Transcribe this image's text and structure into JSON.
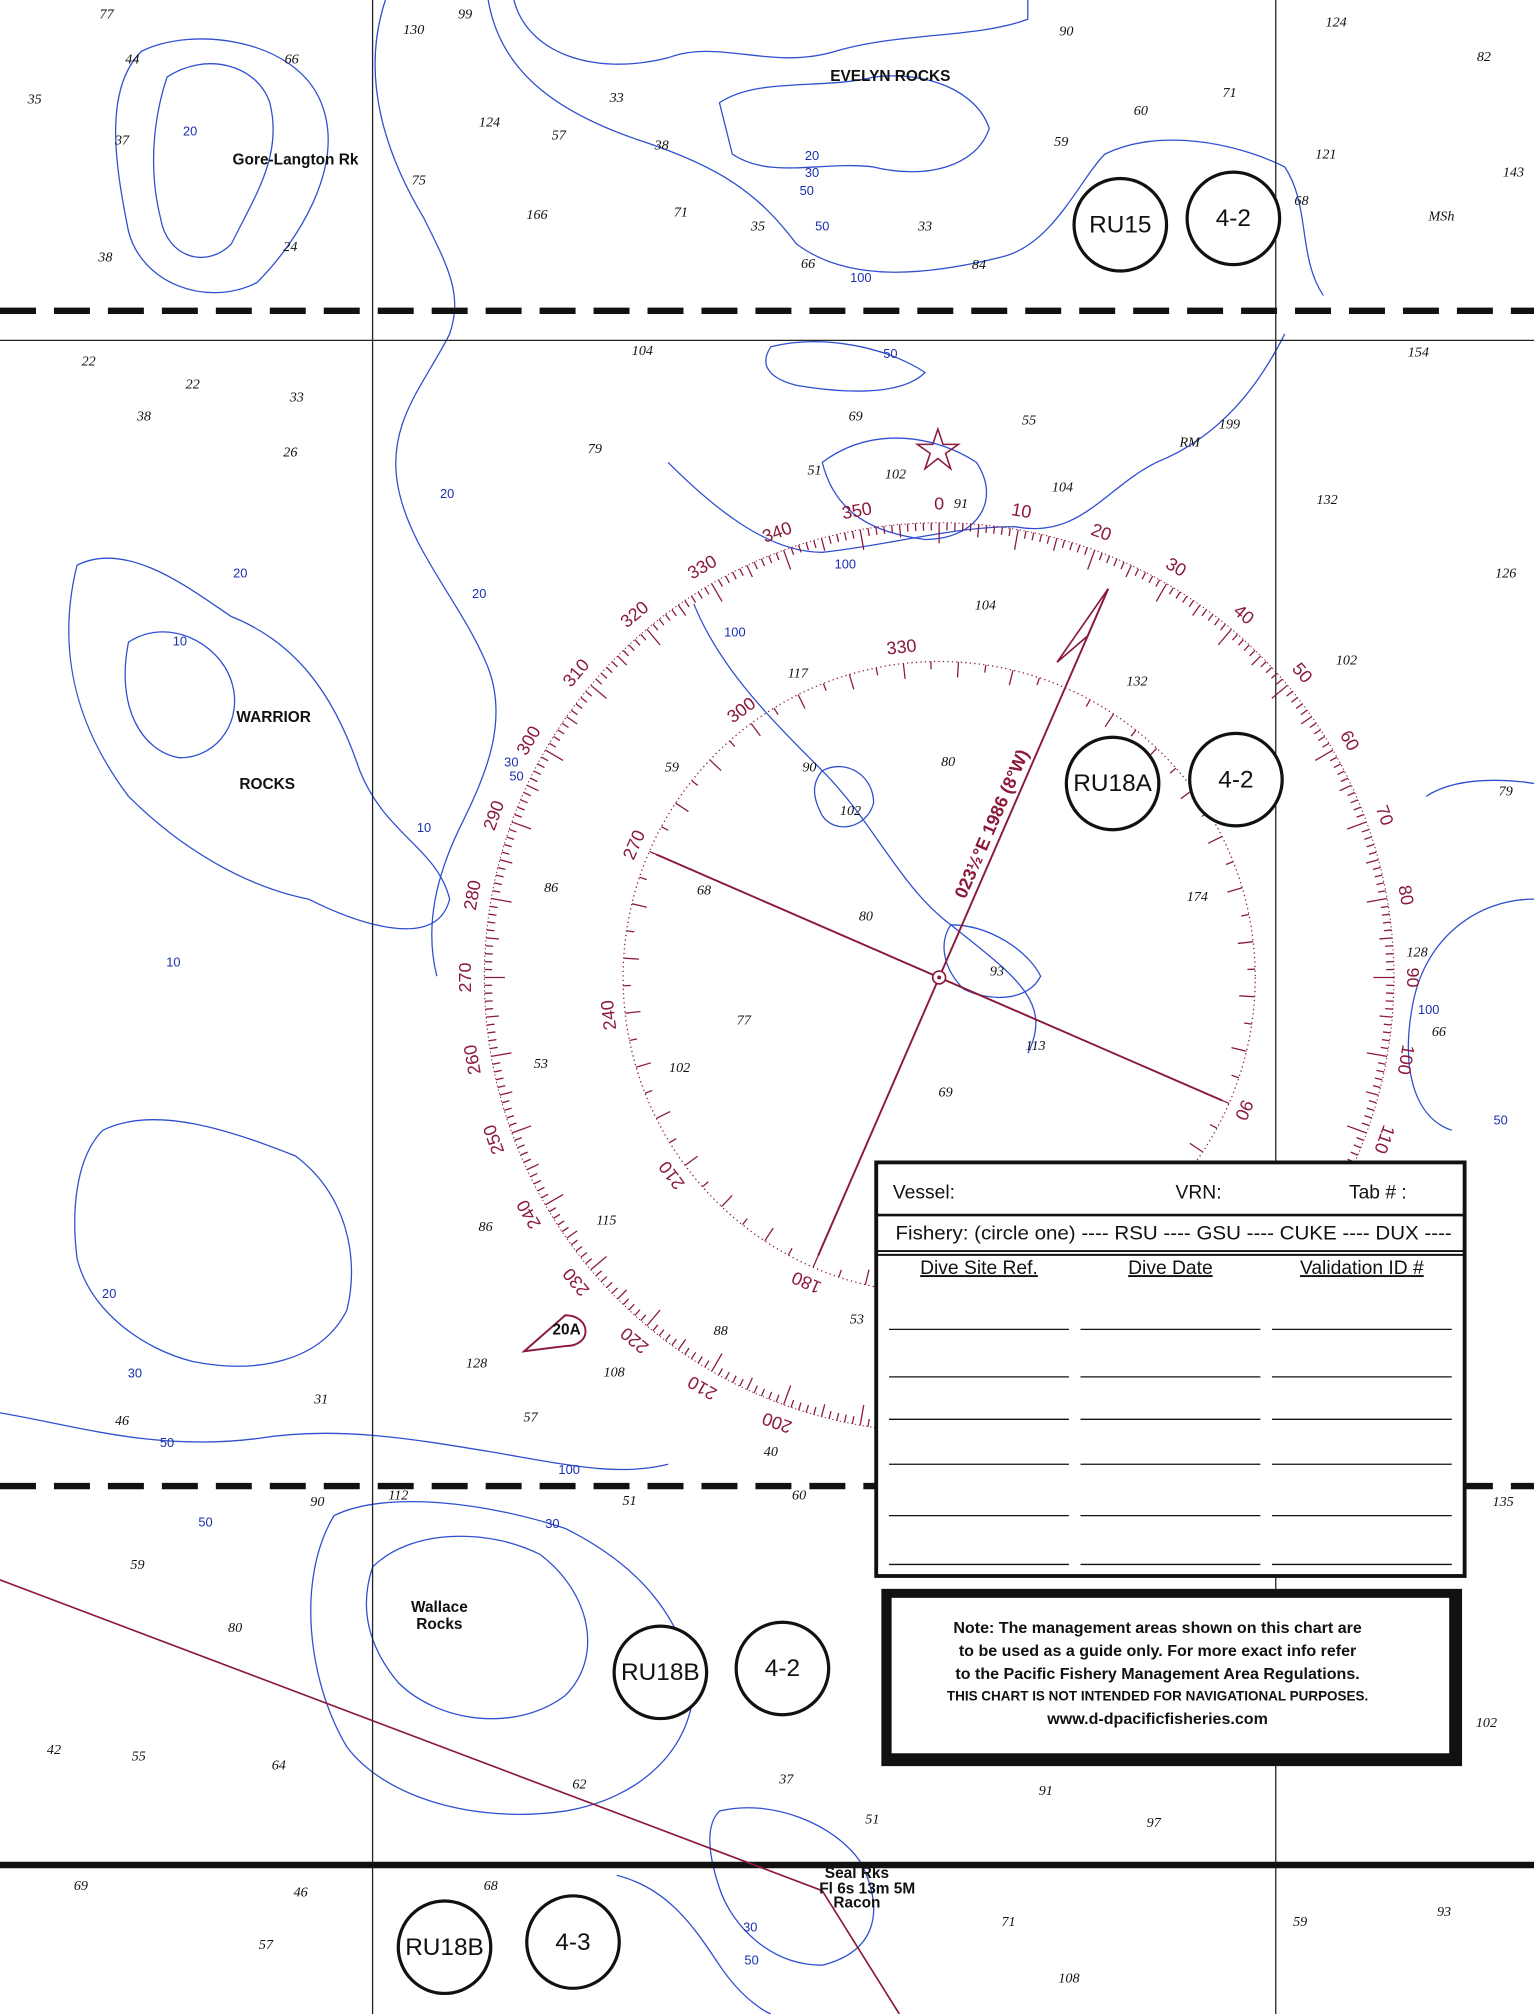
{
  "area_labels": [
    "RU15",
    "4-2",
    "RU18A",
    "4-2",
    "RU18B",
    "4-2",
    "RU18B",
    "4-3"
  ],
  "place_names": [
    "EVELYN ROCKS",
    "Gore-Langton Rk",
    "WARRIOR",
    "ROCKS",
    "Wallace",
    "Rocks",
    "Seal Rks",
    "Fl 6s 13m 5M",
    "Racon",
    "20A"
  ],
  "soundings": [
    "77",
    "44",
    "66",
    "35",
    "37",
    "38",
    "24",
    "130",
    "99",
    "124",
    "57",
    "75",
    "166",
    "71",
    "33",
    "38",
    "35",
    "66",
    "84",
    "33",
    "59",
    "60",
    "90",
    "124",
    "82",
    "71",
    "121",
    "143",
    "MSh",
    "68",
    "104",
    "154",
    "22",
    "22",
    "33",
    "38",
    "26",
    "69",
    "55",
    "199",
    "RM",
    "51",
    "102",
    "91",
    "104",
    "79",
    "132",
    "126",
    "104",
    "117",
    "132",
    "102",
    "59",
    "90",
    "80",
    "102",
    "68",
    "80",
    "86",
    "93",
    "174",
    "77",
    "102",
    "113",
    "69",
    "128",
    "66",
    "79",
    "53",
    "115",
    "86",
    "128",
    "108",
    "88",
    "53",
    "57",
    "31",
    "46",
    "59",
    "80",
    "55",
    "42",
    "64",
    "62",
    "51",
    "37",
    "91",
    "97",
    "71",
    "59",
    "93",
    "108",
    "57",
    "46",
    "69",
    "68",
    "135",
    "102",
    "90",
    "112",
    "51",
    "60",
    "40"
  ],
  "contour_labels": [
    "20",
    "20",
    "30",
    "50",
    "50",
    "100",
    "50",
    "20",
    "20",
    "20",
    "10",
    "100",
    "100",
    "30",
    "50",
    "10",
    "10",
    "100",
    "50",
    "20",
    "30",
    "50",
    "100",
    "50",
    "30",
    "30",
    "50"
  ],
  "compass": {
    "outer_labels": [
      200,
      210,
      220,
      230,
      240,
      250,
      260,
      270,
      280,
      290,
      300,
      310,
      320,
      330,
      340,
      350,
      0,
      10,
      20,
      30,
      40,
      50,
      60,
      70,
      80,
      90,
      100,
      110
    ],
    "inner_labels": [
      330,
      300,
      270,
      240,
      210,
      180,
      90
    ],
    "variation": "023½°E 1986 (8°W)"
  },
  "form": {
    "vessel": "Vessel:",
    "vrn": "VRN:",
    "tab": "Tab # :",
    "fishery": "Fishery: (circle one) ---- RSU ---- GSU ---- CUKE ---- DUX ----",
    "columns": [
      "Dive Site Ref.",
      "Dive Date",
      "Validation ID #"
    ]
  },
  "note": {
    "lines": [
      "Note: The management areas shown on this chart are",
      "to be used as a guide only.  For more exact info refer",
      "to the Pacific Fishery Management Area Regulations."
    ],
    "disclaimer": "THIS CHART IS NOT INTENDED FOR  NAVIGATIONAL PURPOSES.",
    "website": "www.d-dpacificfisheries.com"
  }
}
